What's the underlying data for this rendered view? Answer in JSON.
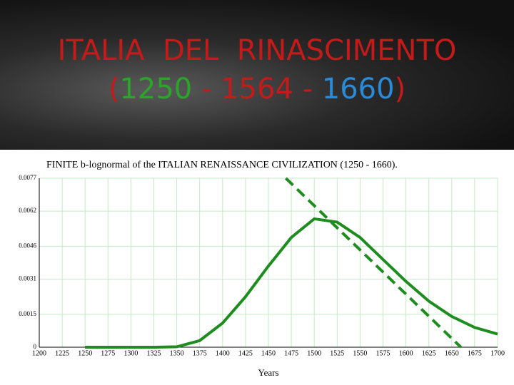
{
  "slide": {
    "title_line1": "ITALIA  DEL  RINASCIMENTO",
    "title_line2": [
      "(",
      "1250",
      " - 1564 - ",
      "1660",
      ")"
    ]
  },
  "chart_data": {
    "type": "line",
    "title": "FINITE b-lognormal of the ITALIAN RENAISSANCE CIVILIZATION (1250 - 1660).",
    "x_label": "Years",
    "xlim": [
      1200,
      1700
    ],
    "xticks": [
      1200,
      1225,
      1250,
      1275,
      1300,
      1325,
      1350,
      1375,
      1400,
      1425,
      1450,
      1475,
      1500,
      1525,
      1550,
      1575,
      1600,
      1625,
      1650,
      1675,
      1700
    ],
    "ylim": [
      0,
      0.0077
    ],
    "yticks": [
      0,
      0.0015,
      0.0031,
      0.0046,
      0.0062,
      0.0077
    ],
    "grid": true,
    "series": [
      {
        "color": "#1e8c1e",
        "style": "solid",
        "x": [
          1250,
          1275,
          1300,
          1325,
          1350,
          1375,
          1400,
          1425,
          1450,
          1475,
          1500,
          1525,
          1550,
          1575,
          1600,
          1625,
          1650,
          1675,
          1700
        ],
        "values": [
          0,
          0,
          0,
          0,
          2e-05,
          0.0003,
          0.0011,
          0.0023,
          0.0037,
          0.005,
          0.00585,
          0.0057,
          0.005,
          0.004,
          0.003,
          0.0021,
          0.0014,
          0.0009,
          0.0006
        ]
      },
      {
        "color": "#1e8c1e",
        "style": "dashed",
        "x": [
          1469,
          1660
        ],
        "values": [
          0.0077,
          0
        ]
      }
    ]
  }
}
